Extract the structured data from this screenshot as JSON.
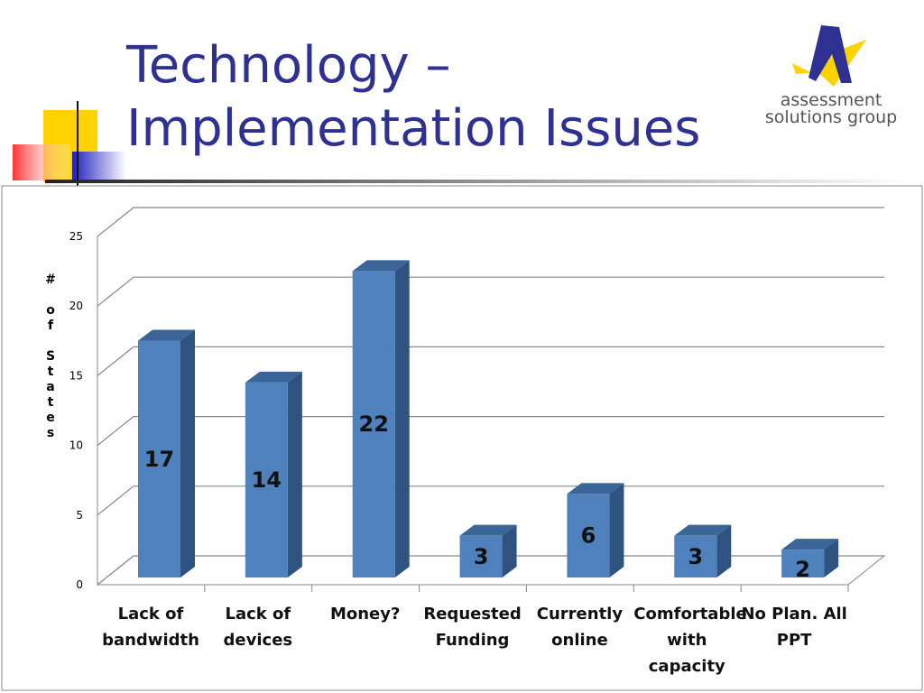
{
  "header": {
    "title": "Technology – Implementation Issues",
    "logo": "assessment solutions group"
  },
  "chart_data": {
    "type": "bar3d",
    "categories": [
      "Lack of bandwidth",
      "Lack of devices",
      "Money?",
      "Requested Funding",
      "Currently online",
      "Comfortable with capacity",
      "No Plan. All PPT"
    ],
    "values": [
      17,
      14,
      22,
      3,
      6,
      3,
      2
    ],
    "color": "#4f81bd",
    "y_label": "# of States",
    "ylim": [
      0,
      25
    ],
    "yticks": [
      0,
      5,
      10,
      15,
      20,
      25
    ],
    "grid": true
  }
}
